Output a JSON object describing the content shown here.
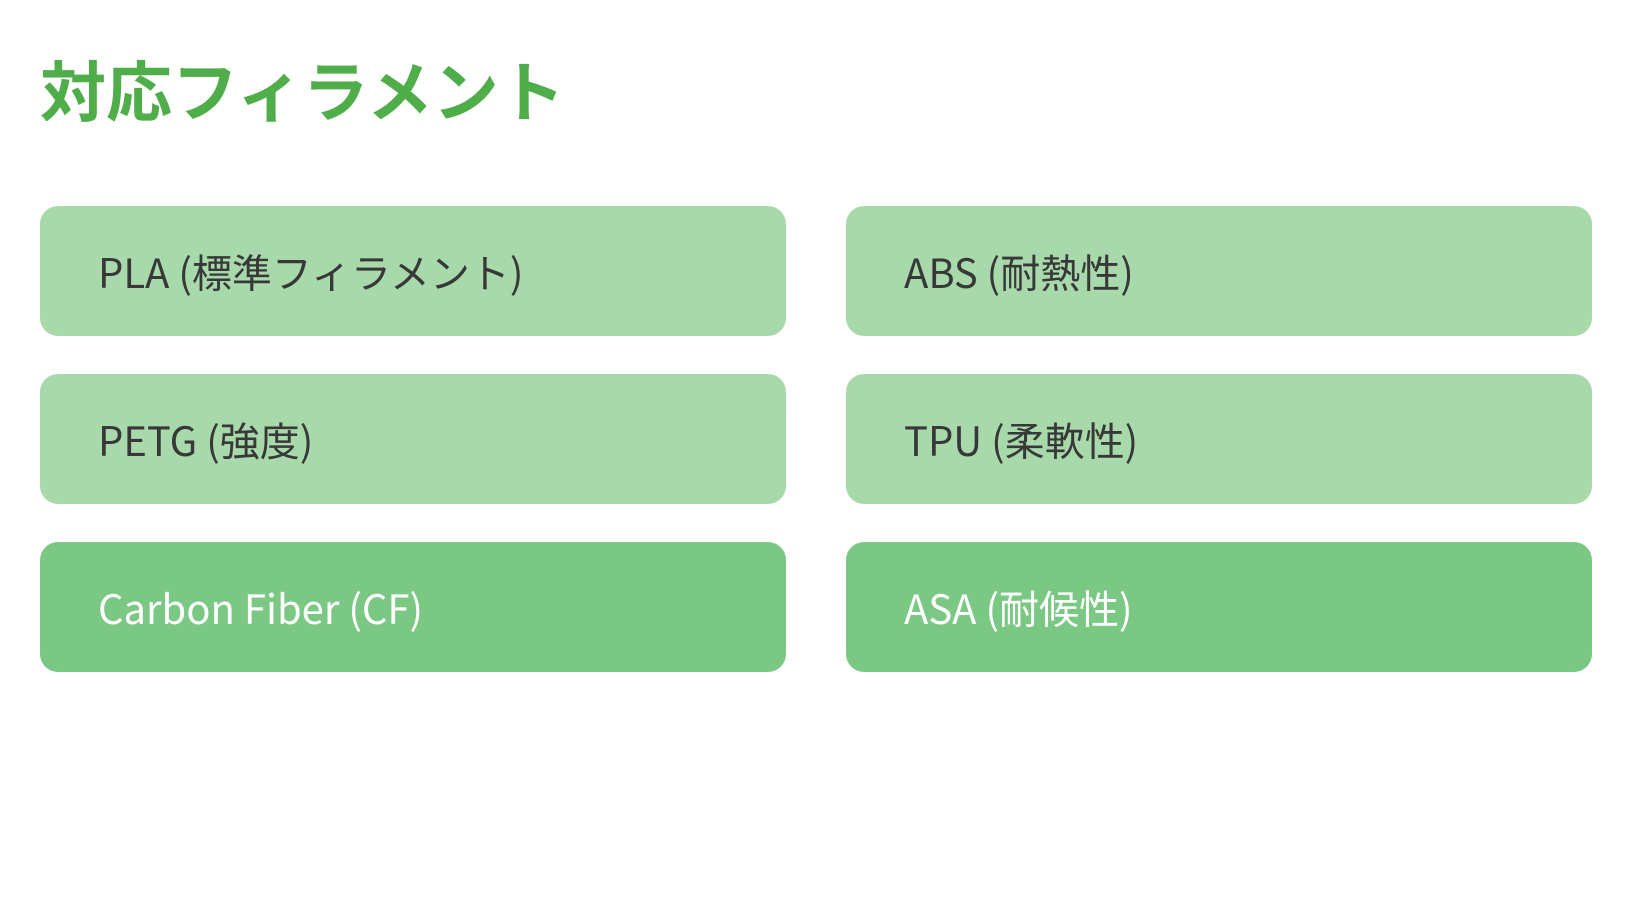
{
  "infographic": {
    "type": "infographic",
    "title": "対応フィラメント",
    "title_color": "#4fae4a",
    "title_fontsize": 66,
    "title_fontweight": 700,
    "background_color": "#ffffff",
    "grid": {
      "columns": 2,
      "rows": 3,
      "column_gap": 60,
      "row_gap": 38
    },
    "card_style": {
      "border_radius": 18,
      "height": 130,
      "fontsize": 40,
      "padding_left": 58
    },
    "palette": {
      "light_bg": "#a7d9ab",
      "light_text": "#383838",
      "dark_bg": "#7bc884",
      "dark_text": "#ffffff"
    },
    "cards": [
      {
        "label": "PLA (標準フィラメント)",
        "variant": "light"
      },
      {
        "label": "ABS (耐熱性)",
        "variant": "light"
      },
      {
        "label": "PETG (強度)",
        "variant": "light"
      },
      {
        "label": "TPU (柔軟性)",
        "variant": "light"
      },
      {
        "label": "Carbon Fiber (CF)",
        "variant": "dark"
      },
      {
        "label": "ASA (耐候性)",
        "variant": "dark"
      }
    ]
  }
}
